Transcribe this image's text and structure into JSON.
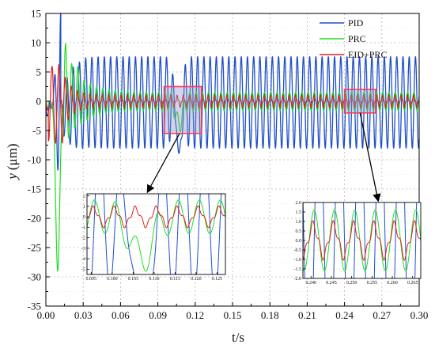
{
  "chart_data": {
    "type": "line",
    "xlabel": "t/s",
    "ylabel_italic": "y",
    "ylabel_unit": "(μm)",
    "xlim": [
      0,
      0.3
    ],
    "ylim": [
      -35,
      15
    ],
    "xticks": [
      "0.00",
      "0.03",
      "0.06",
      "0.09",
      "0.12",
      "0.15",
      "0.18",
      "0.21",
      "0.24",
      "0.27",
      "0.30"
    ],
    "yticks": [
      "15",
      "10",
      "5",
      "0",
      "-5",
      "-10",
      "-15",
      "-20",
      "-25",
      "-30",
      "-35"
    ],
    "grid": true,
    "legend_position": "top-right",
    "series": [
      {
        "name": "PID",
        "color": "#1f4fc9",
        "steady_amplitude": 7.8,
        "frequency_hz": 200,
        "transient_min": -15.5,
        "notch_time": 0.107,
        "notch_value": -12.5
      },
      {
        "name": "PRC",
        "color": "#22dd22",
        "steady_amplitude": 1.6,
        "frequency_hz": 200,
        "transient_min": -29.0,
        "transient_max": 6.0,
        "dip_time": 0.107,
        "dip_value": -5.0
      },
      {
        "name": "EID+PRC",
        "color": "#e02020",
        "steady_amplitude": 0.8,
        "frequency_hz": 200,
        "transient_min": -6.5,
        "transient_max": 6.5
      }
    ],
    "zoom_windows": [
      {
        "xlim": [
          0.095,
          0.125
        ],
        "ylim": [
          -5.5,
          2.5
        ]
      },
      {
        "xlim": [
          0.24,
          0.265
        ],
        "ylim": [
          -2.0,
          2.0
        ]
      }
    ],
    "insets": [
      {
        "xlim": [
          0.094,
          0.127
        ],
        "ylim": [
          -5.5,
          2.2
        ],
        "xticks": [
          "0.095",
          "0.100",
          "0.105",
          "0.110",
          "0.115",
          "0.120",
          "0.125"
        ],
        "yticks": [
          "2",
          "1",
          "0",
          "-1",
          "-2",
          "-3",
          "-4",
          "-5"
        ]
      },
      {
        "xlim": [
          0.238,
          0.267
        ],
        "ylim": [
          -2.0,
          2.0
        ],
        "xticks": [
          "0.240",
          "0.245",
          "0.250",
          "0.255",
          "0.260",
          "0.265"
        ],
        "yticks": [
          "2.0",
          "1.5",
          "1.0",
          "0.5",
          "0.0",
          "-0.5",
          "-1.0",
          "-1.5",
          "-2.0"
        ]
      }
    ]
  }
}
